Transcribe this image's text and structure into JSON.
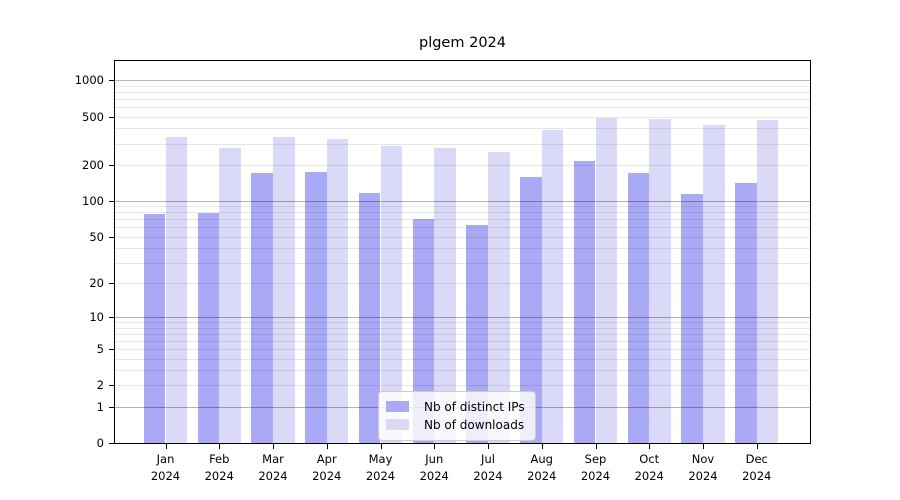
{
  "chart_data": {
    "type": "bar",
    "title": "plgem 2024",
    "categories": [
      "Jan",
      "Feb",
      "Mar",
      "Apr",
      "May",
      "Jun",
      "Jul",
      "Aug",
      "Sep",
      "Oct",
      "Nov",
      "Dec"
    ],
    "category_year": "2024",
    "series": [
      {
        "name": "Nb of distinct IPs",
        "color": "#a9a9f6",
        "values": [
          78,
          79,
          171,
          173,
          116,
          71,
          63,
          157,
          215,
          171,
          114,
          141
        ]
      },
      {
        "name": "Nb of downloads",
        "color": "#dadaf8",
        "values": [
          341,
          275,
          338,
          326,
          287,
          273,
          256,
          390,
          490,
          483,
          429,
          471
        ]
      }
    ],
    "xlabel": "",
    "ylabel": "",
    "yscale": "symlog-log1p",
    "ylim": [
      0,
      1450
    ],
    "yticks": [
      0,
      1,
      2,
      5,
      10,
      20,
      50,
      100,
      200,
      500,
      1000
    ],
    "major_gridlines": [
      1,
      10,
      100,
      1000
    ],
    "minor_gridlines": [
      2,
      3,
      4,
      5,
      6,
      7,
      8,
      9,
      20,
      30,
      40,
      50,
      60,
      70,
      80,
      90,
      200,
      300,
      400,
      500,
      600,
      700,
      800,
      900
    ],
    "grid": true,
    "legend_position": "lower center"
  },
  "colors": {
    "major_grid": "rgba(0,0,0,0.30)",
    "minor_grid": "rgba(0,0,0,0.09)",
    "spine": "#000000"
  }
}
